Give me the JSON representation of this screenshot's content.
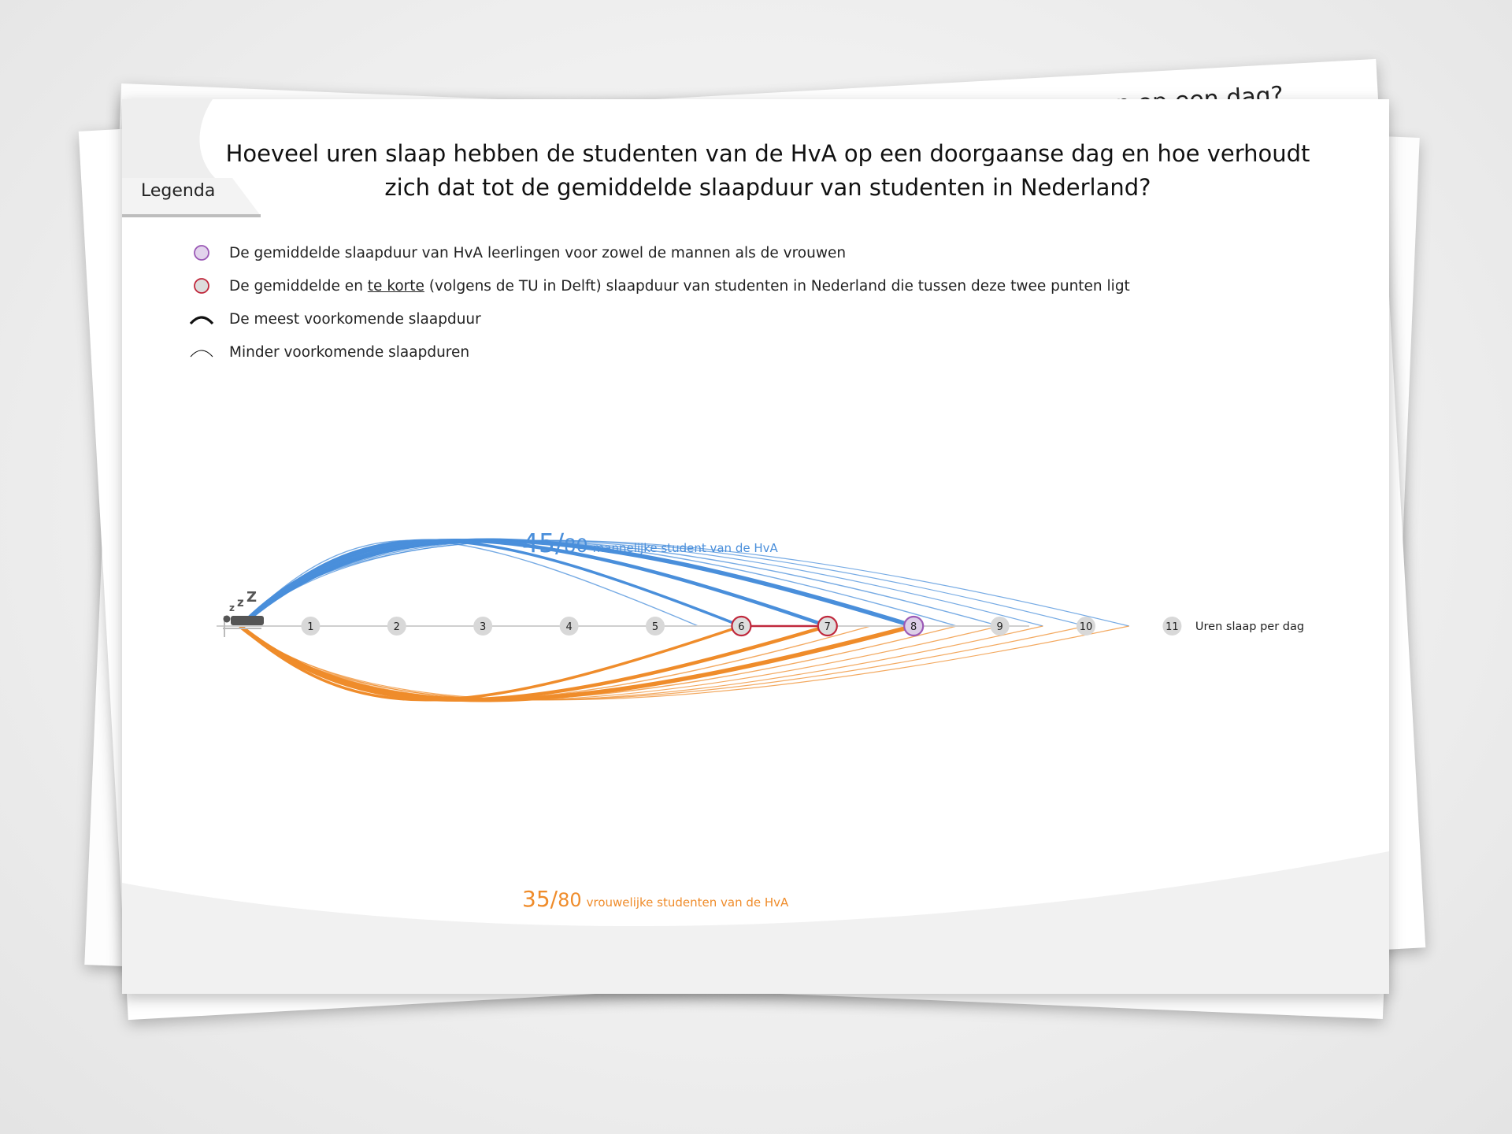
{
  "back_sheet": {
    "partial_title": "n op een dag?"
  },
  "legend": {
    "tab_label": "Legenda",
    "items": [
      {
        "symbol": "purple-circle",
        "text": "De gemiddelde slaapduur van HvA leerlingen voor zowel de mannen als de vrouwen"
      },
      {
        "symbol": "red-circle",
        "text_before": "De gemiddelde en ",
        "text_underlined": "te korte",
        "text_after": " (volgens de TU in Delft) slaapduur van studenten in Nederland die tussen deze twee punten ligt"
      },
      {
        "symbol": "thick-arc",
        "text": "De meest voorkomende slaapduur"
      },
      {
        "symbol": "thin-arc",
        "text": "Minder voorkomende slaapduren"
      }
    ]
  },
  "colors": {
    "male": "#4a8fdb",
    "female": "#ef8c2b",
    "average_hva": "#9b59b6",
    "average_nl": "#c0283c",
    "axis": "#cccccc",
    "tick_fill": "#d8d8d8"
  },
  "chart_data": {
    "type": "arc-diagram",
    "title": "Hoeveel uren slaap hebben de studenten van de HvA op een doorgaanse dag en hoe verhoudt zich dat tot de gemiddelde slaapduur van studenten in Nederland?",
    "x_axis": {
      "label": "Uren slaap per dag",
      "ticks": [
        "1",
        "2",
        "3",
        "4",
        "5",
        "6",
        "7",
        "8",
        "9",
        "10",
        "11"
      ],
      "range": [
        0,
        11
      ]
    },
    "hva_average_hours": 8,
    "nl_average_range_hours": [
      6,
      7
    ],
    "series": [
      {
        "name": "mannelijke student van de HvA",
        "count": "45",
        "total": "80",
        "values": [
          5.5,
          6,
          6,
          7,
          7,
          8,
          8,
          8,
          8.5,
          9,
          9.5,
          10,
          10.5
        ]
      },
      {
        "name": "vrouwelijke studenten van de HvA",
        "count": "35",
        "total": "80",
        "values": [
          6,
          7,
          7,
          7.5,
          8,
          8,
          8.5,
          9,
          9.5,
          10,
          10.5
        ]
      }
    ]
  }
}
